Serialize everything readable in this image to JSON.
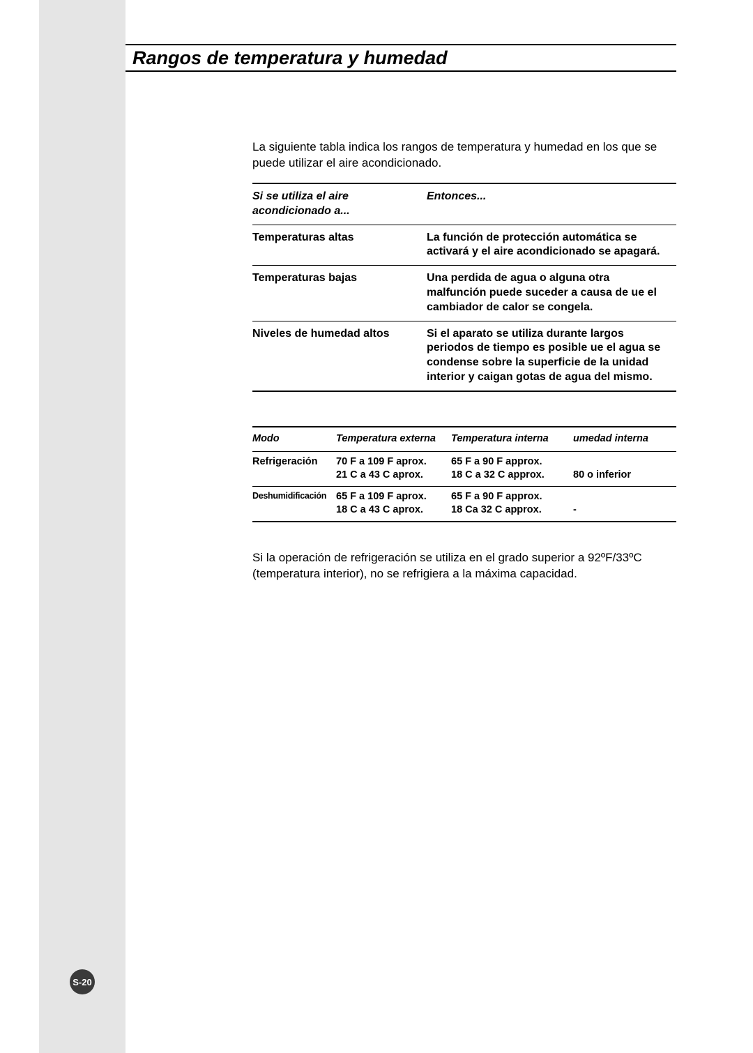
{
  "page": {
    "title": "Rangos de temperatura y humedad",
    "intro": "La siguiente tabla indica los rangos de temperatura y humedad en los que se puede utilizar el aire acondicionado.",
    "footnote": "Si la operación de refrigeración se utiliza en el grado superior a 92ºF/33ºC (temperatura interior), no se refrigiera a la máxima capacidad.",
    "page_number": "S-20",
    "colors": {
      "margin_bg": "#e5e5e5",
      "text": "#000000",
      "rule": "#000000",
      "badge_bg": "#3a3a3a",
      "badge_text": "#ffffff"
    },
    "typography": {
      "title_fontsize": 27,
      "body_fontsize": 17,
      "table1_fontsize": 16,
      "table2_fontsize": 14.5,
      "footnote_fontsize": 17,
      "badge_fontsize": 13
    }
  },
  "table1": {
    "header": {
      "col1": "Si se utiliza el aire acondicionado a...",
      "col2": "Entonces..."
    },
    "rows": [
      {
        "c1": "Temperaturas altas",
        "c2": "La función de protección automática se activará y el aire acondicionado se apagará."
      },
      {
        "c1": "Temperaturas bajas",
        "c2": "Una perdida de agua o alguna otra malfunción puede suceder a causa de ue el cambiador de calor se congela."
      },
      {
        "c1": "Niveles de humedad altos",
        "c2": "Si el aparato se utiliza durante largos periodos de tiempo  es posible   ue el agua se condense sobre la superficie de la unidad interior y caigan gotas de agua del mismo."
      }
    ]
  },
  "table2": {
    "header": {
      "c1": "Modo",
      "c2": "Temperatura externa",
      "c3": "Temperatura interna",
      "c4": "umedad interna"
    },
    "rows": [
      {
        "c1": "Refrigeración",
        "c2a": "70  F a 109  F aprox.",
        "c2b": "21  C a 43  C aprox.",
        "c3a": "65  F a 90  F approx.",
        "c3b": "18  C a 32  C approx.",
        "c4": "80    o inferior"
      },
      {
        "c1": "Deshumidificación",
        "c2a": "65  F a 109  F aprox.",
        "c2b": "18  C a 43  C aprox.",
        "c3a": "65  F a 90  F approx.",
        "c3b": "18  Ca 32  C approx.",
        "c4": "-"
      }
    ]
  }
}
